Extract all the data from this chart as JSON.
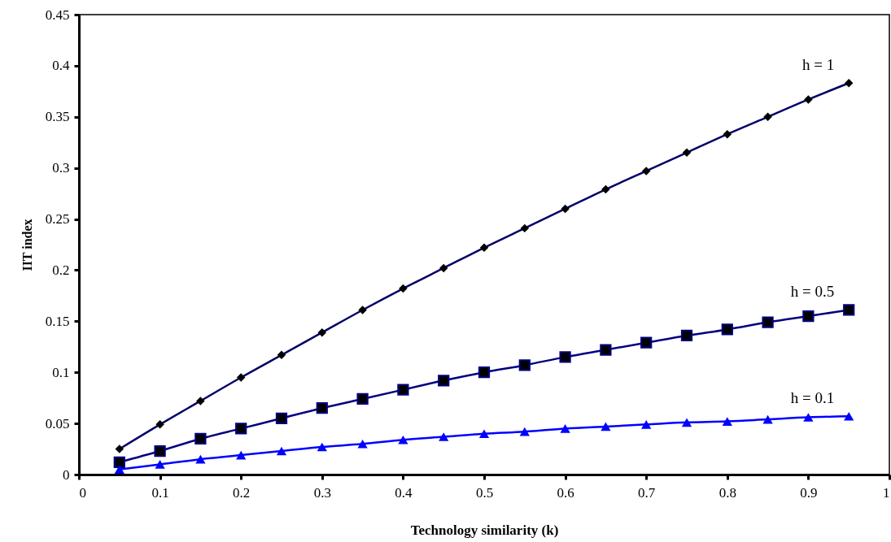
{
  "chart_data": {
    "type": "line",
    "xlabel": "Technology similarity (k)",
    "ylabel": "IIT index",
    "x": [
      0.05,
      0.1,
      0.15,
      0.2,
      0.25,
      0.3,
      0.35,
      0.4,
      0.45,
      0.5,
      0.55,
      0.6,
      0.65,
      0.7,
      0.75,
      0.8,
      0.85,
      0.9,
      0.95
    ],
    "series": [
      {
        "name": "h = 1",
        "color": "#000066",
        "marker": "diamond",
        "values": [
          0.025,
          0.049,
          0.072,
          0.095,
          0.117,
          0.139,
          0.161,
          0.182,
          0.202,
          0.222,
          0.241,
          0.26,
          0.279,
          0.297,
          0.315,
          0.333,
          0.35,
          0.367,
          0.383
        ]
      },
      {
        "name": "h = 0.5",
        "color": "#000080",
        "marker": "square",
        "values": [
          0.012,
          0.023,
          0.035,
          0.045,
          0.055,
          0.065,
          0.074,
          0.083,
          0.092,
          0.1,
          0.107,
          0.115,
          0.122,
          0.129,
          0.136,
          0.142,
          0.149,
          0.155,
          0.161
        ]
      },
      {
        "name": "h = 0.1",
        "color": "#0000ff",
        "marker": "triangle",
        "values": [
          0.005,
          0.01,
          0.015,
          0.019,
          0.023,
          0.027,
          0.03,
          0.034,
          0.037,
          0.04,
          0.042,
          0.045,
          0.047,
          0.049,
          0.051,
          0.052,
          0.054,
          0.056,
          0.057
        ]
      }
    ],
    "xlim": [
      0,
      1
    ],
    "xticks": [
      0,
      0.1,
      0.2,
      0.3,
      0.4,
      0.5,
      0.6,
      0.7,
      0.8,
      0.9,
      1
    ],
    "ylim": [
      0,
      0.45
    ],
    "yticks": [
      0,
      0.05,
      0.1,
      0.15,
      0.2,
      0.25,
      0.3,
      0.35,
      0.4,
      0.45
    ],
    "grid": false,
    "line_style": "solid"
  }
}
